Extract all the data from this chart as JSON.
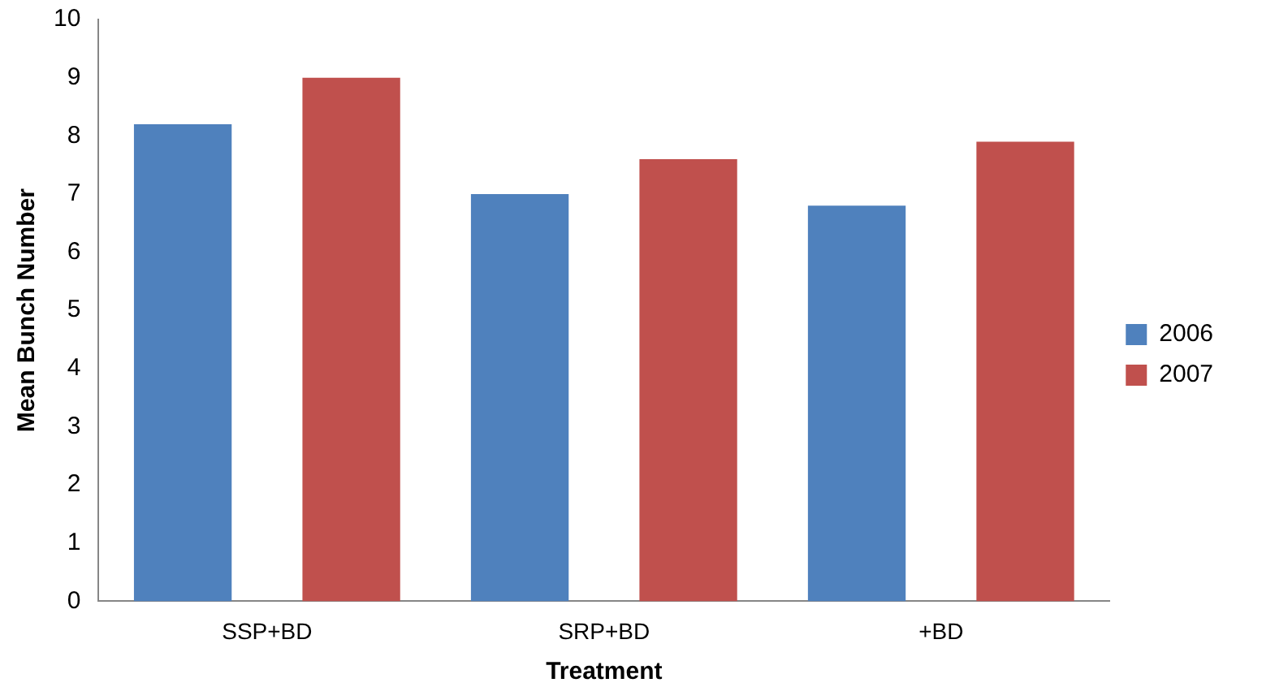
{
  "chart_data": {
    "type": "bar",
    "xlabel": "Treatment",
    "ylabel": "Mean Bunch Number",
    "categories": [
      "SSP+BD",
      "SRP+BD",
      "+BD"
    ],
    "series": [
      {
        "name": "2006",
        "color": "#4f81bd",
        "values": [
          8.2,
          7.0,
          6.8
        ]
      },
      {
        "name": "2007",
        "color": "#c0504d",
        "values": [
          9.0,
          7.6,
          7.9
        ]
      }
    ],
    "ylim": [
      0,
      10
    ],
    "yticks": [
      0,
      1,
      2,
      3,
      4,
      5,
      6,
      7,
      8,
      9,
      10
    ],
    "grid": false,
    "legend": "right"
  }
}
